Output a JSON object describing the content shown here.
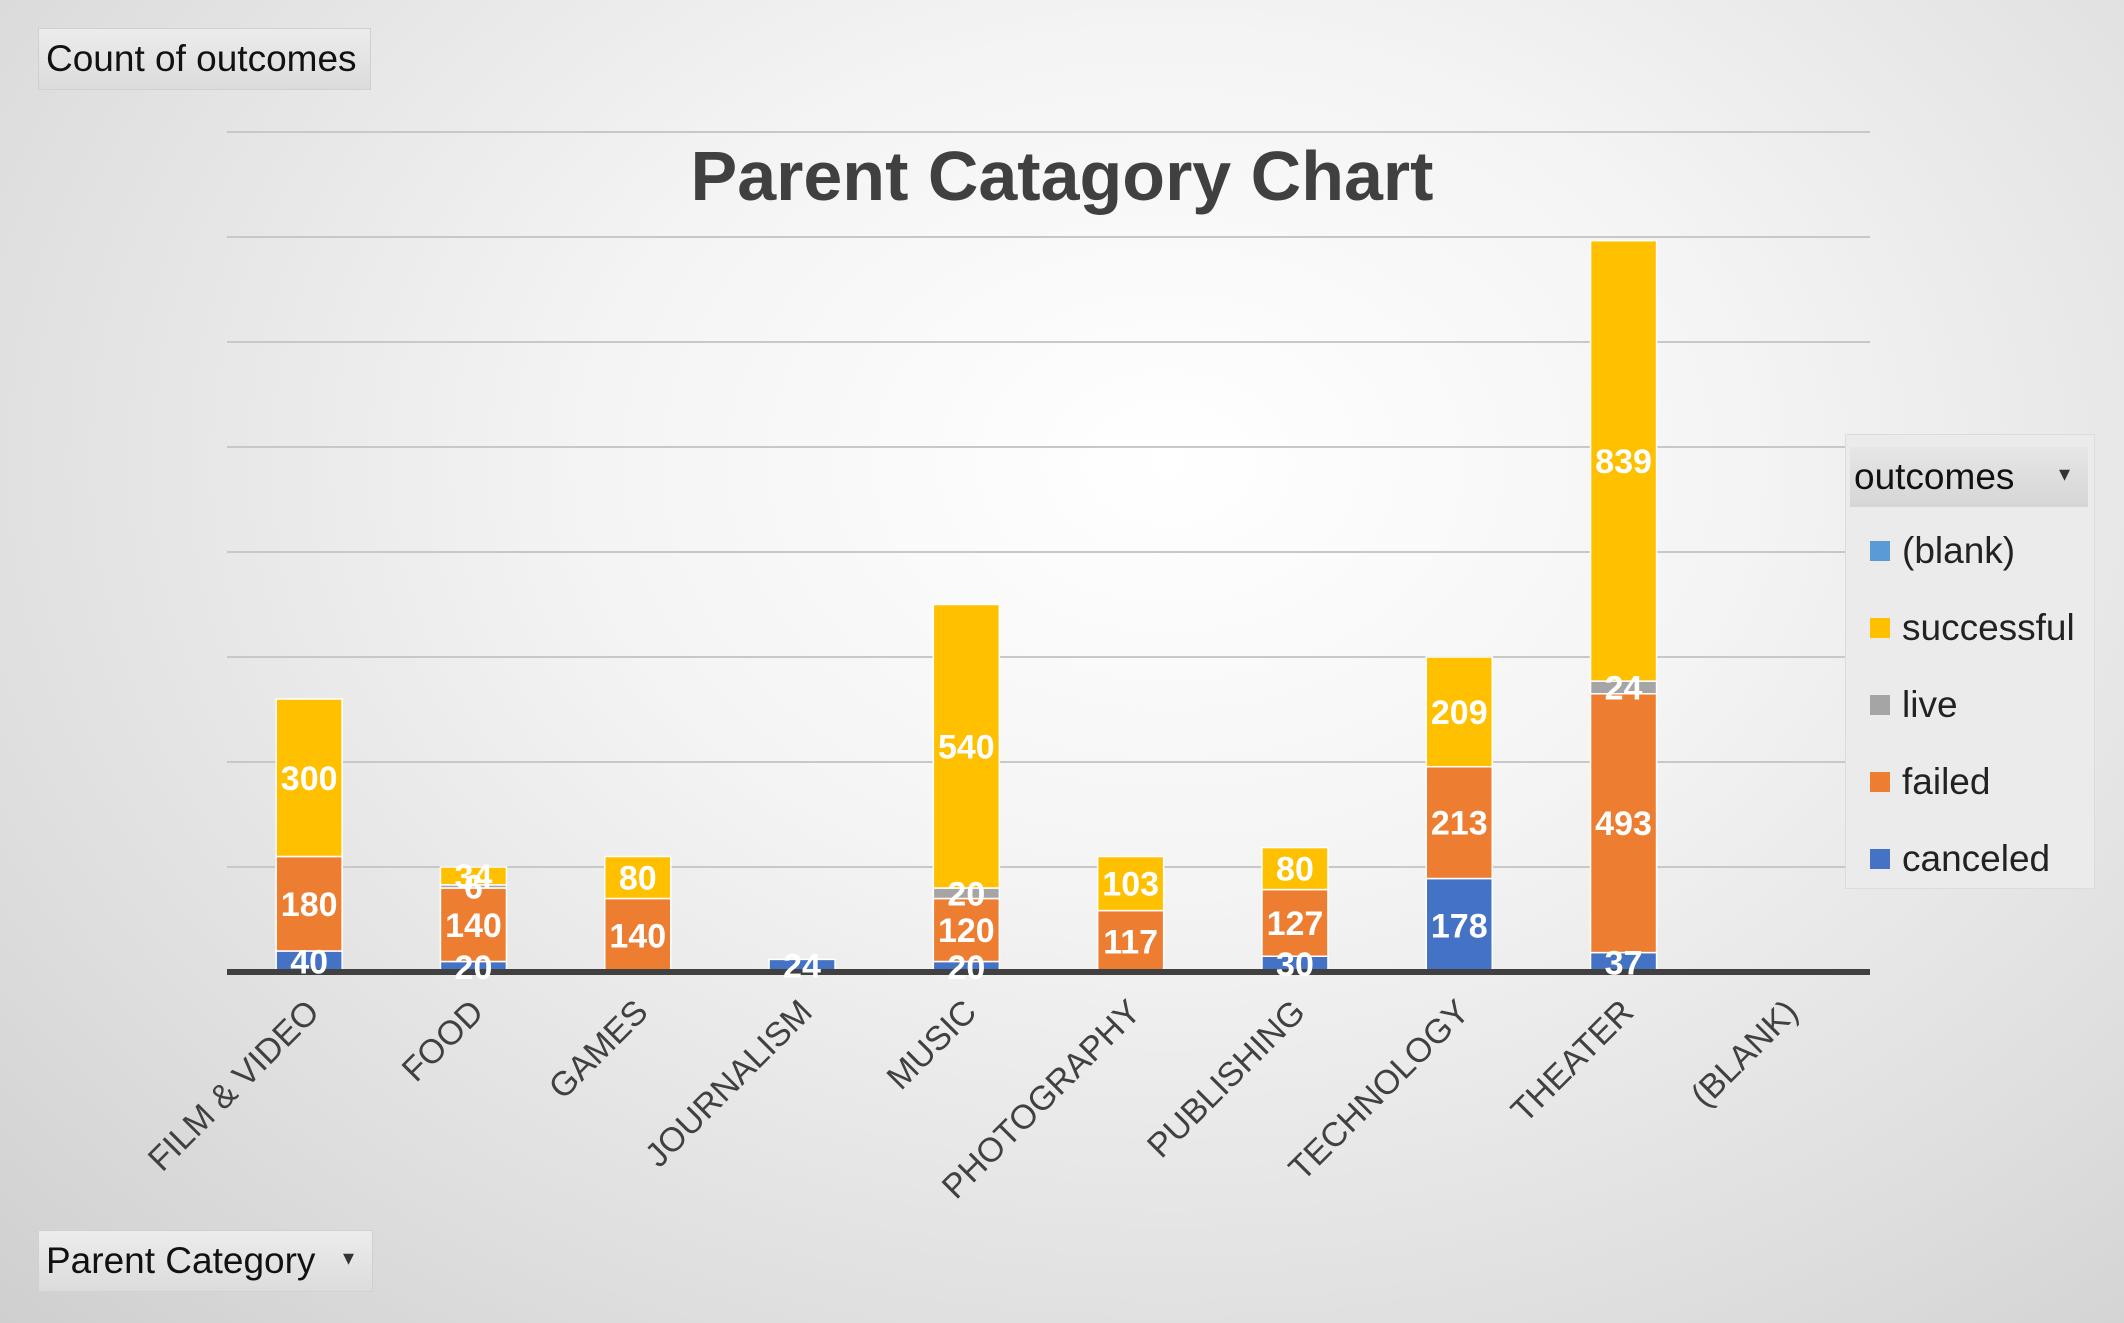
{
  "pivot": {
    "values_button": "Count of outcomes",
    "axis_button": "Parent Category",
    "legend_button": "outcomes"
  },
  "legend_items": [
    {
      "label": "(blank)",
      "color": "#5b9bd5"
    },
    {
      "label": "successful",
      "color": "#ffc000"
    },
    {
      "label": "live",
      "color": "#a5a5a5"
    },
    {
      "label": "failed",
      "color": "#ed7d31"
    },
    {
      "label": "canceled",
      "color": "#4472c4"
    }
  ],
  "chart_data": {
    "type": "bar",
    "stacked": true,
    "title": "Parent Catagory Chart",
    "categories": [
      "FILM & VIDEO",
      "FOOD",
      "GAMES",
      "JOURNALISM",
      "MUSIC",
      "PHOTOGRAPHY",
      "PUBLISHING",
      "TECHNOLOGY",
      "THEATER",
      "(BLANK)"
    ],
    "series": [
      {
        "name": "canceled",
        "color": "#4472c4",
        "values": [
          40,
          20,
          null,
          24,
          20,
          null,
          30,
          178,
          37,
          null
        ]
      },
      {
        "name": "failed",
        "color": "#ed7d31",
        "values": [
          180,
          140,
          140,
          null,
          120,
          117,
          127,
          213,
          493,
          null
        ]
      },
      {
        "name": "live",
        "color": "#a5a5a5",
        "values": [
          null,
          6,
          null,
          null,
          20,
          null,
          null,
          null,
          24,
          null
        ]
      },
      {
        "name": "successful",
        "color": "#ffc000",
        "values": [
          300,
          34,
          80,
          null,
          540,
          103,
          80,
          209,
          839,
          null
        ]
      },
      {
        "name": "(blank)",
        "color": "#5b9bd5",
        "values": [
          null,
          null,
          null,
          null,
          null,
          null,
          null,
          null,
          null,
          null
        ]
      }
    ],
    "ylim": [
      0,
      1600
    ],
    "grid": true,
    "legend": "right"
  }
}
